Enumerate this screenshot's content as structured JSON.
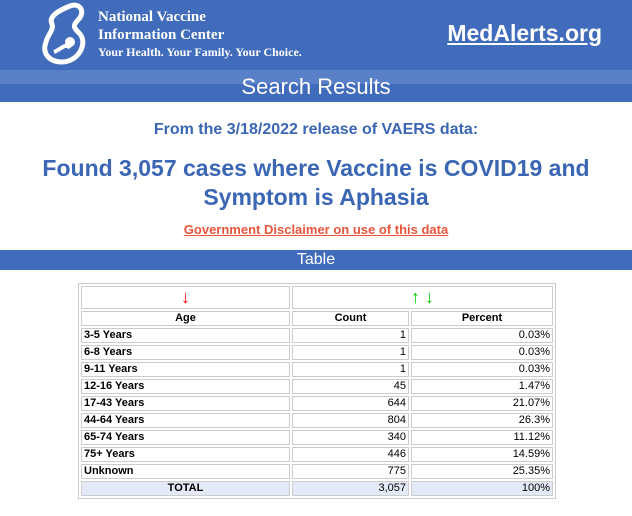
{
  "header": {
    "org_line1": "National Vaccine",
    "org_line2": "Information Center",
    "tagline": "Your Health. Your Family. Your Choice.",
    "site_link": "MedAlerts.org",
    "brand_color": "#416cbc"
  },
  "page_title": "Search Results",
  "release_text": "From the 3/18/2022 release of VAERS data:",
  "found_text": "Found 3,057 cases where Vaccine is COVID19 and Symptom is Aphasia",
  "disclaimer_link": "Government Disclaimer on use of this data",
  "table_band": "Table",
  "table": {
    "sort_icons": {
      "age": "red-down-arrow",
      "count": "green-up-down-arrows"
    },
    "arrows": {
      "down": "↓",
      "up": "↑"
    },
    "headers": [
      "Age",
      "Count",
      "Percent"
    ],
    "rows": [
      [
        "3-5 Years",
        "1",
        "0.03%"
      ],
      [
        "6-8 Years",
        "1",
        "0.03%"
      ],
      [
        "9-11 Years",
        "1",
        "0.03%"
      ],
      [
        "12-16 Years",
        "45",
        "1.47%"
      ],
      [
        "17-43 Years",
        "644",
        "21.07%"
      ],
      [
        "44-64 Years",
        "804",
        "26.3%"
      ],
      [
        "65-74 Years",
        "340",
        "11.12%"
      ],
      [
        "75+ Years",
        "446",
        "14.59%"
      ],
      [
        "Unknown",
        "775",
        "25.35%"
      ]
    ],
    "total": [
      "TOTAL",
      "3,057",
      "100%"
    ]
  }
}
